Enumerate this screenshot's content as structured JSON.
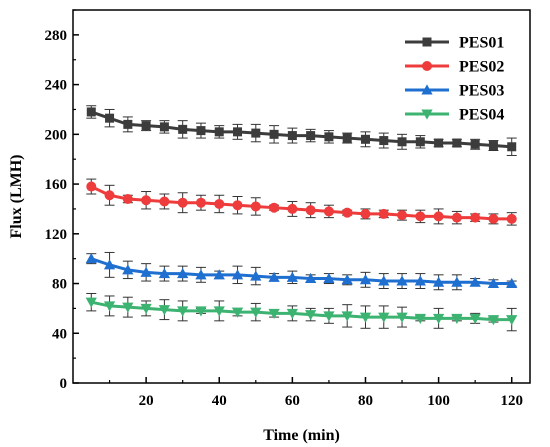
{
  "chart_data": {
    "type": "line",
    "xlabel": "Time (min)",
    "ylabel": "Flux (LMH)",
    "xlim": [
      0,
      125
    ],
    "ylim": [
      0,
      300
    ],
    "x_ticks": [
      "20",
      "40",
      "60",
      "80",
      "100",
      "120"
    ],
    "y_ticks": [
      "0",
      "40",
      "80",
      "120",
      "160",
      "200",
      "240",
      "280"
    ],
    "grid": false,
    "legend_position": "top-right",
    "x": [
      5,
      10,
      15,
      20,
      25,
      30,
      35,
      40,
      45,
      50,
      55,
      60,
      65,
      70,
      75,
      80,
      85,
      90,
      95,
      100,
      105,
      110,
      115,
      120
    ],
    "series": [
      {
        "name": "PES01",
        "color": "#3c3c3c",
        "marker": "square",
        "values": [
          218,
          213,
          208,
          207,
          206,
          204,
          203,
          202,
          202,
          201,
          200,
          199,
          199,
          198,
          197,
          196,
          195,
          194,
          194,
          193,
          193,
          192,
          191,
          190
        ],
        "errors": [
          5,
          7,
          6,
          4,
          5,
          7,
          6,
          5,
          6,
          7,
          7,
          6,
          5,
          5,
          4,
          6,
          6,
          6,
          5,
          3,
          3,
          4,
          4,
          7
        ]
      },
      {
        "name": "PES02",
        "color": "#ee3b3b",
        "marker": "circle",
        "values": [
          158,
          151,
          148,
          147,
          146,
          145,
          145,
          144,
          143,
          142,
          141,
          140,
          139,
          138,
          137,
          136,
          136,
          135,
          134,
          134,
          133,
          133,
          132,
          132
        ],
        "errors": [
          6,
          8,
          3,
          7,
          6,
          8,
          6,
          7,
          7,
          7,
          2,
          6,
          6,
          5,
          2,
          4,
          3,
          4,
          5,
          6,
          5,
          3,
          4,
          5
        ]
      },
      {
        "name": "PES03",
        "color": "#1f6fd1",
        "marker": "triangle-up",
        "values": [
          100,
          95,
          91,
          89,
          88,
          88,
          87,
          87,
          87,
          86,
          85,
          85,
          84,
          84,
          83,
          83,
          82,
          82,
          82,
          81,
          81,
          81,
          80,
          80
        ],
        "errors": [
          4,
          10,
          7,
          7,
          6,
          6,
          6,
          3,
          7,
          7,
          3,
          5,
          3,
          4,
          4,
          6,
          6,
          6,
          6,
          6,
          6,
          3,
          3,
          2
        ]
      },
      {
        "name": "PES04",
        "color": "#3cb371",
        "marker": "triangle-down",
        "values": [
          65,
          62,
          61,
          60,
          59,
          58,
          58,
          58,
          57,
          57,
          56,
          56,
          55,
          54,
          54,
          53,
          53,
          53,
          52,
          52,
          52,
          52,
          51,
          51
        ],
        "errors": [
          7,
          8,
          8,
          6,
          8,
          8,
          2,
          8,
          3,
          7,
          3,
          6,
          5,
          6,
          9,
          9,
          9,
          8,
          2,
          8,
          2,
          4,
          2,
          9
        ]
      }
    ]
  }
}
